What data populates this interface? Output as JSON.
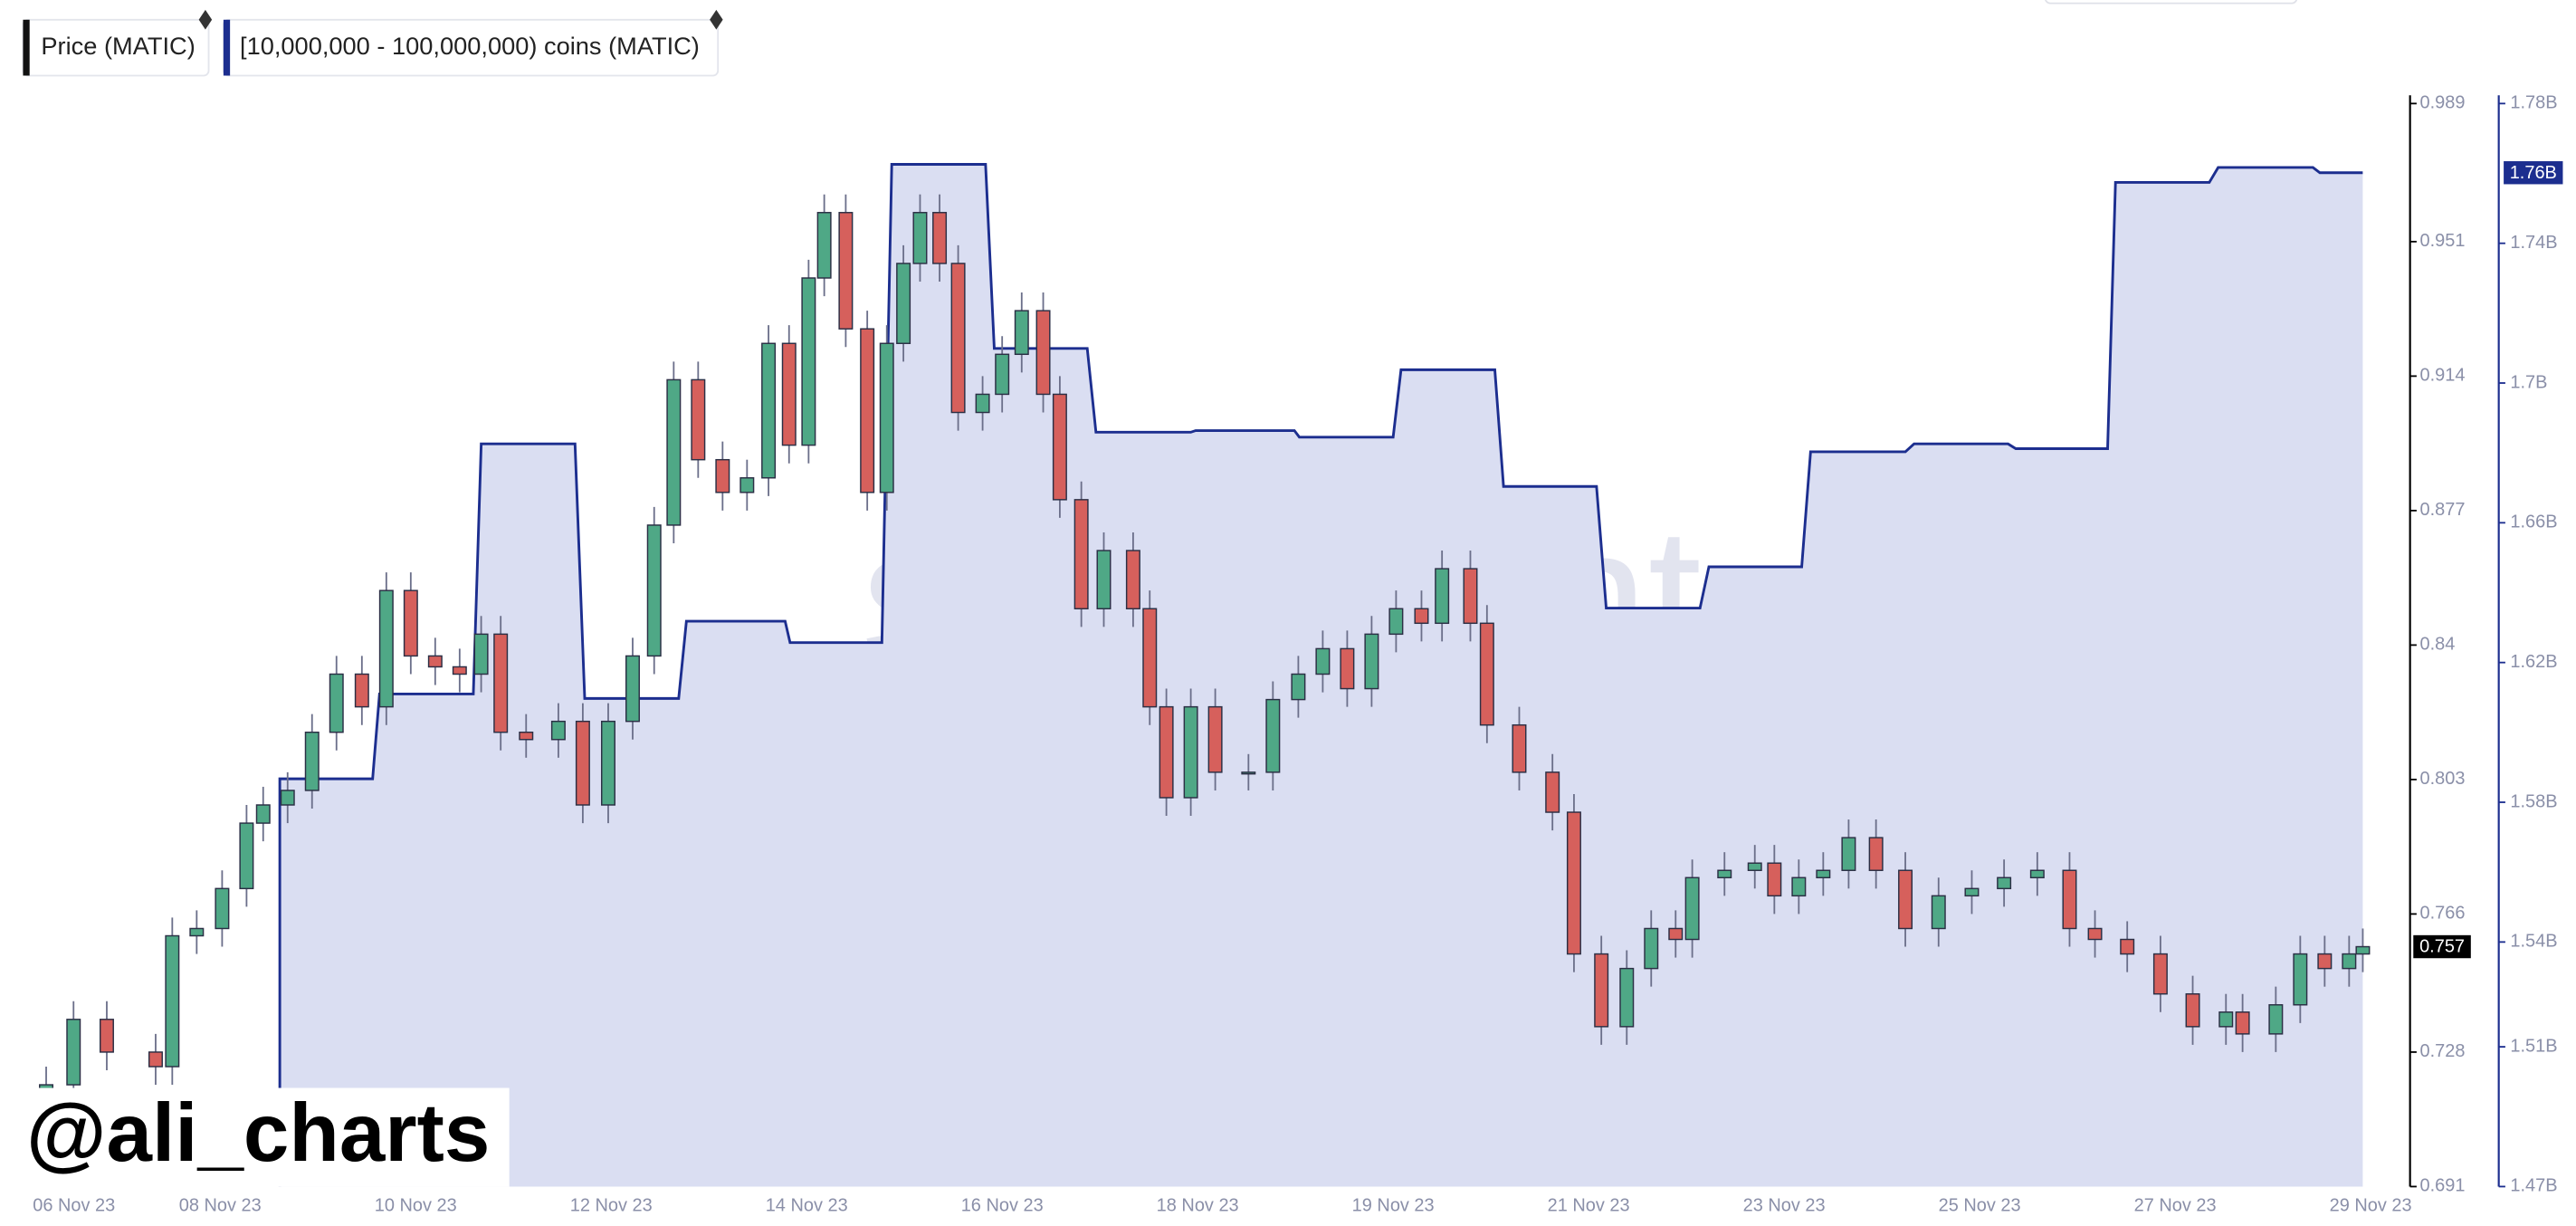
{
  "chart_data": {
    "type": "candlestick",
    "legend": [
      "Price (MATIC)",
      "[10,000,000 - 100,000,000) coins (MATIC)"
    ],
    "watermark": "santiment",
    "annotation": "@ali_charts",
    "xlim": [
      0,
      24
    ],
    "xticks": [
      {
        "value": 0,
        "label": "06 Nov 23"
      },
      {
        "value": 2,
        "label": "08 Nov 23"
      },
      {
        "value": 4,
        "label": "10 Nov 23"
      },
      {
        "value": 6,
        "label": "12 Nov 23"
      },
      {
        "value": 8,
        "label": "14 Nov 23"
      },
      {
        "value": 10,
        "label": "16 Nov 23"
      },
      {
        "value": 12,
        "label": "18 Nov 23"
      },
      {
        "value": 14,
        "label": "19 Nov 23"
      },
      {
        "value": 16,
        "label": "21 Nov 23"
      },
      {
        "value": 18,
        "label": "23 Nov 23"
      },
      {
        "value": 20,
        "label": "25 Nov 23"
      },
      {
        "value": 22,
        "label": "27 Nov 23"
      },
      {
        "value": 24,
        "label": "29 Nov 23"
      }
    ],
    "ylim": [
      0.691,
      0.989
    ],
    "yticks": [
      0.989,
      0.951,
      0.914,
      0.877,
      0.84,
      0.803,
      0.766,
      0.728,
      0.691
    ],
    "y2lim": [
      1470000000,
      1780000000
    ],
    "y2ticks": [
      {
        "value": 1780000000,
        "label": "1.78B"
      },
      {
        "value": 1740000000,
        "label": "1.74B"
      },
      {
        "value": 1700000000,
        "label": "1.7B"
      },
      {
        "value": 1660000000,
        "label": "1.66B"
      },
      {
        "value": 1620000000,
        "label": "1.62B"
      },
      {
        "value": 1580000000,
        "label": "1.58B"
      },
      {
        "value": 1540000000,
        "label": "1.54B"
      },
      {
        "value": 1510000000,
        "label": "1.51B"
      },
      {
        "value": 1470000000,
        "label": "1.47B"
      }
    ],
    "series": [
      {
        "name": "Price (MATIC)",
        "type": "candlestick",
        "color": "#111111",
        "up_color": "#4fa886",
        "down_color": "#d6605c",
        "x": [
          0.22,
          0.5,
          0.84,
          1.34,
          1.51,
          1.76,
          2.02,
          2.27,
          2.44,
          2.69,
          2.94,
          3.19,
          3.45,
          3.7,
          3.95,
          4.2,
          4.45,
          4.67,
          4.87,
          5.13,
          5.46,
          5.71,
          5.97,
          6.22,
          6.44,
          6.64,
          6.89,
          7.14,
          7.39,
          7.61,
          7.82,
          8.02,
          8.18,
          8.4,
          8.62,
          8.82,
          8.99,
          9.16,
          9.36,
          9.55,
          9.8,
          10.0,
          10.2,
          10.42,
          10.59,
          10.81,
          11.04,
          11.34,
          11.51,
          11.68,
          11.93,
          12.18,
          12.52,
          12.77,
          13.03,
          13.28,
          13.53,
          13.78,
          14.03,
          14.29,
          14.5,
          14.79,
          14.96,
          15.29,
          15.63,
          15.85,
          16.13,
          16.39,
          16.64,
          16.89,
          17.06,
          17.39,
          17.7,
          17.9,
          18.15,
          18.4,
          18.66,
          18.94,
          19.24,
          19.58,
          19.92,
          20.25,
          20.59,
          20.92,
          21.18,
          21.51,
          21.85,
          22.18,
          22.52,
          22.69,
          23.03,
          23.28,
          23.53,
          23.78,
          23.92
        ],
        "open": [
          0.712,
          0.719,
          0.737,
          0.728,
          0.724,
          0.76,
          0.762,
          0.773,
          0.791,
          0.796,
          0.8,
          0.816,
          0.832,
          0.823,
          0.855,
          0.837,
          0.834,
          0.832,
          0.843,
          0.816,
          0.814,
          0.819,
          0.796,
          0.819,
          0.837,
          0.873,
          0.913,
          0.891,
          0.882,
          0.886,
          0.923,
          0.895,
          0.941,
          0.959,
          0.927,
          0.882,
          0.923,
          0.945,
          0.959,
          0.945,
          0.904,
          0.909,
          0.92,
          0.932,
          0.909,
          0.88,
          0.85,
          0.866,
          0.85,
          0.823,
          0.798,
          0.823,
          0.805,
          0.805,
          0.825,
          0.832,
          0.839,
          0.828,
          0.843,
          0.85,
          0.846,
          0.861,
          0.846,
          0.818,
          0.805,
          0.794,
          0.755,
          0.735,
          0.751,
          0.762,
          0.759,
          0.776,
          0.778,
          0.78,
          0.771,
          0.776,
          0.778,
          0.787,
          0.778,
          0.762,
          0.771,
          0.773,
          0.776,
          0.778,
          0.762,
          0.759,
          0.755,
          0.744,
          0.735,
          0.739,
          0.733,
          0.741,
          0.755,
          0.751,
          0.755
        ],
        "high": [
          0.724,
          0.742,
          0.742,
          0.733,
          0.765,
          0.767,
          0.778,
          0.796,
          0.801,
          0.805,
          0.821,
          0.837,
          0.837,
          0.86,
          0.86,
          0.842,
          0.839,
          0.848,
          0.848,
          0.821,
          0.824,
          0.824,
          0.824,
          0.842,
          0.878,
          0.918,
          0.918,
          0.896,
          0.891,
          0.928,
          0.928,
          0.946,
          0.964,
          0.964,
          0.932,
          0.928,
          0.95,
          0.964,
          0.964,
          0.95,
          0.914,
          0.925,
          0.937,
          0.937,
          0.914,
          0.885,
          0.871,
          0.871,
          0.855,
          0.828,
          0.828,
          0.828,
          0.81,
          0.83,
          0.837,
          0.844,
          0.844,
          0.848,
          0.855,
          0.855,
          0.866,
          0.866,
          0.851,
          0.823,
          0.81,
          0.799,
          0.76,
          0.756,
          0.767,
          0.767,
          0.781,
          0.783,
          0.785,
          0.785,
          0.781,
          0.783,
          0.792,
          0.792,
          0.783,
          0.776,
          0.778,
          0.781,
          0.783,
          0.783,
          0.767,
          0.764,
          0.76,
          0.749,
          0.744,
          0.744,
          0.746,
          0.76,
          0.76,
          0.76,
          0.762
        ],
        "low": [
          0.707,
          0.714,
          0.723,
          0.719,
          0.719,
          0.755,
          0.757,
          0.768,
          0.786,
          0.791,
          0.795,
          0.811,
          0.818,
          0.818,
          0.832,
          0.829,
          0.827,
          0.827,
          0.811,
          0.809,
          0.809,
          0.791,
          0.791,
          0.814,
          0.832,
          0.868,
          0.886,
          0.877,
          0.877,
          0.881,
          0.89,
          0.89,
          0.936,
          0.922,
          0.877,
          0.877,
          0.918,
          0.94,
          0.94,
          0.899,
          0.899,
          0.904,
          0.915,
          0.904,
          0.875,
          0.845,
          0.845,
          0.845,
          0.818,
          0.793,
          0.793,
          0.8,
          0.8,
          0.8,
          0.82,
          0.827,
          0.823,
          0.823,
          0.838,
          0.841,
          0.841,
          0.841,
          0.813,
          0.8,
          0.789,
          0.75,
          0.73,
          0.73,
          0.746,
          0.754,
          0.754,
          0.771,
          0.773,
          0.766,
          0.766,
          0.771,
          0.773,
          0.773,
          0.757,
          0.757,
          0.766,
          0.768,
          0.771,
          0.757,
          0.754,
          0.75,
          0.739,
          0.73,
          0.73,
          0.728,
          0.728,
          0.736,
          0.746,
          0.746,
          0.75
        ],
        "close": [
          0.719,
          0.737,
          0.728,
          0.724,
          0.76,
          0.762,
          0.773,
          0.791,
          0.796,
          0.8,
          0.816,
          0.832,
          0.823,
          0.855,
          0.837,
          0.834,
          0.832,
          0.843,
          0.816,
          0.814,
          0.819,
          0.796,
          0.819,
          0.837,
          0.873,
          0.913,
          0.891,
          0.882,
          0.886,
          0.923,
          0.895,
          0.941,
          0.959,
          0.927,
          0.882,
          0.923,
          0.945,
          0.959,
          0.945,
          0.904,
          0.909,
          0.92,
          0.932,
          0.909,
          0.88,
          0.85,
          0.866,
          0.85,
          0.823,
          0.798,
          0.823,
          0.805,
          0.805,
          0.825,
          0.832,
          0.839,
          0.828,
          0.843,
          0.85,
          0.846,
          0.861,
          0.846,
          0.818,
          0.805,
          0.794,
          0.755,
          0.735,
          0.751,
          0.762,
          0.759,
          0.776,
          0.778,
          0.78,
          0.771,
          0.776,
          0.778,
          0.787,
          0.778,
          0.762,
          0.771,
          0.773,
          0.776,
          0.778,
          0.762,
          0.759,
          0.755,
          0.744,
          0.735,
          0.739,
          0.733,
          0.741,
          0.755,
          0.751,
          0.755,
          0.757
        ]
      },
      {
        "name": "[10,000,000 - 100,000,000) coins (MATIC)",
        "type": "area",
        "axis": "y2",
        "color": "#1c2e8f",
        "fill": "#dadef2",
        "x": [
          2.61,
          3.56,
          3.63,
          4.59,
          4.67,
          5.63,
          5.73,
          6.69,
          6.77,
          7.78,
          7.83,
          8.77,
          8.87,
          9.83,
          9.92,
          10.87,
          10.96,
          11.93,
          11.98,
          12.99,
          13.04,
          14.0,
          14.08,
          15.04,
          15.13,
          16.08,
          16.18,
          17.14,
          17.23,
          18.18,
          18.27,
          19.24,
          19.33,
          20.29,
          20.37,
          21.31,
          21.39,
          22.35,
          22.44,
          23.41,
          23.48,
          23.92
        ],
        "values": [
          1586700000,
          1586700000,
          1611000000,
          1611000000,
          1682600000,
          1682600000,
          1609700000,
          1609700000,
          1631800000,
          1631800000,
          1625700000,
          1625700000,
          1762600000,
          1762600000,
          1709900000,
          1709900000,
          1685900000,
          1685900000,
          1686400000,
          1686400000,
          1684500000,
          1684500000,
          1703800000,
          1703800000,
          1670400000,
          1670400000,
          1635600000,
          1635600000,
          1647400000,
          1647400000,
          1680300000,
          1680300000,
          1682600000,
          1682600000,
          1681200000,
          1681200000,
          1757400000,
          1757400000,
          1761700000,
          1761700000,
          1760200000,
          1760200000
        ],
        "last_label": "1.76B"
      }
    ]
  }
}
